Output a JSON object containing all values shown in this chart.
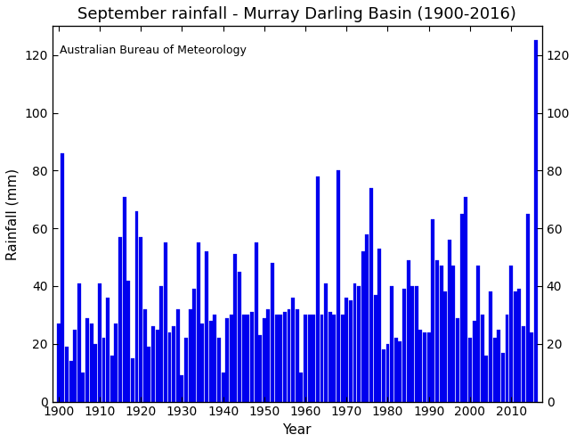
{
  "title": "September rainfall - Murray Darling Basin (1900-2016)",
  "xlabel": "Year",
  "ylabel": "Rainfall (mm)",
  "annotation": "Australian Bureau of Meteorology",
  "bar_color": "#0000EE",
  "bar_edge_color": "#0000EE",
  "ylim": [
    0,
    130
  ],
  "yticks": [
    0,
    20,
    40,
    60,
    80,
    100,
    120
  ],
  "xlim": [
    1898.5,
    2017.5
  ],
  "xticks": [
    1900,
    1910,
    1920,
    1930,
    1940,
    1950,
    1960,
    1970,
    1980,
    1990,
    2000,
    2010
  ],
  "years": [
    1900,
    1901,
    1902,
    1903,
    1904,
    1905,
    1906,
    1907,
    1908,
    1909,
    1910,
    1911,
    1912,
    1913,
    1914,
    1915,
    1916,
    1917,
    1918,
    1919,
    1920,
    1921,
    1922,
    1923,
    1924,
    1925,
    1926,
    1927,
    1928,
    1929,
    1930,
    1931,
    1932,
    1933,
    1934,
    1935,
    1936,
    1937,
    1938,
    1939,
    1940,
    1941,
    1942,
    1943,
    1944,
    1945,
    1946,
    1947,
    1948,
    1949,
    1950,
    1951,
    1952,
    1953,
    1954,
    1955,
    1956,
    1957,
    1958,
    1959,
    1960,
    1961,
    1962,
    1963,
    1964,
    1965,
    1966,
    1967,
    1968,
    1969,
    1970,
    1971,
    1972,
    1973,
    1974,
    1975,
    1976,
    1977,
    1978,
    1979,
    1980,
    1981,
    1982,
    1983,
    1984,
    1985,
    1986,
    1987,
    1988,
    1989,
    1990,
    1991,
    1992,
    1993,
    1994,
    1995,
    1996,
    1997,
    1998,
    1999,
    2000,
    2001,
    2002,
    2003,
    2004,
    2005,
    2006,
    2007,
    2008,
    2009,
    2010,
    2011,
    2012,
    2013,
    2014,
    2015,
    2016
  ],
  "values": [
    27,
    86,
    19,
    14,
    25,
    41,
    10,
    29,
    27,
    20,
    41,
    22,
    36,
    16,
    27,
    57,
    71,
    42,
    15,
    66,
    57,
    32,
    19,
    26,
    25,
    40,
    55,
    24,
    26,
    32,
    9,
    22,
    32,
    39,
    55,
    27,
    52,
    28,
    30,
    22,
    10,
    29,
    30,
    51,
    45,
    30,
    30,
    31,
    55,
    23,
    29,
    32,
    48,
    30,
    30,
    31,
    32,
    36,
    32,
    10,
    30,
    30,
    30,
    78,
    30,
    41,
    31,
    30,
    80,
    30,
    36,
    35,
    41,
    40,
    52,
    58,
    74,
    37,
    53,
    18,
    20,
    40,
    22,
    21,
    39,
    49,
    40,
    40,
    25,
    24,
    24,
    63,
    49,
    47,
    38,
    56,
    47,
    29,
    65,
    71,
    22,
    28,
    47,
    30,
    16,
    38,
    22,
    25,
    17,
    30,
    47,
    38,
    39,
    26,
    65,
    24,
    125
  ],
  "figsize": [
    6.47,
    4.97
  ],
  "dpi": 100,
  "title_fontsize": 13,
  "label_fontsize": 11,
  "tick_fontsize": 10,
  "annotation_fontsize": 9
}
